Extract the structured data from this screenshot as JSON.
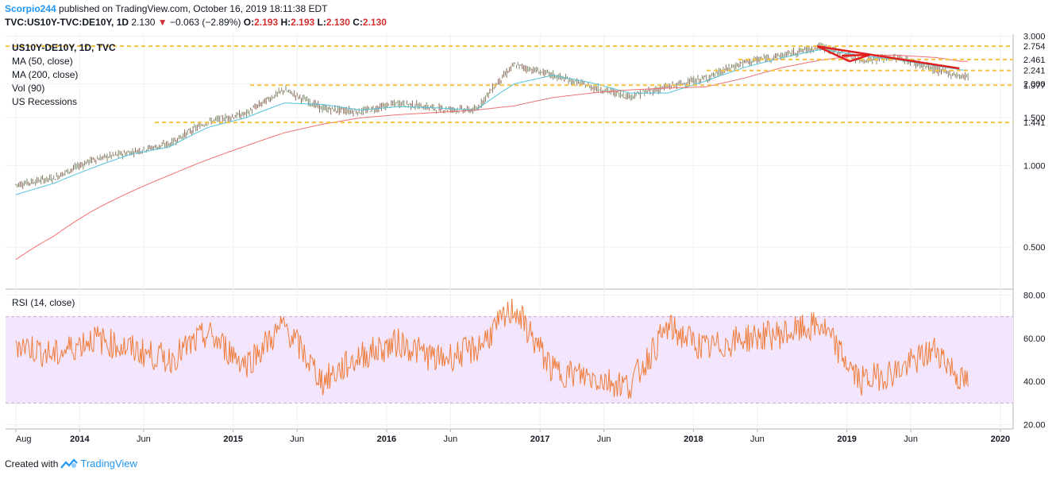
{
  "header": {
    "author": "Scorpio244",
    "published_text": "published on TradingView.com, October 16, 2019 18:11:38 EDT",
    "symbol": "TVC:US10Y-TVC:DE10Y, 1D",
    "price": "2.130",
    "change_arrow": "▼",
    "change": "−0.063 (−2.89%)",
    "o_label": "O:",
    "o": "2.193",
    "h_label": "H:",
    "h": "2.193",
    "l_label": "L:",
    "l": "2.130",
    "c_label": "C:",
    "c": "2.130"
  },
  "legend": {
    "title": "US10Y-DE10Y, 1D, TVC",
    "items": [
      "MA (50, close)",
      "MA (200, close)",
      "Vol (90)",
      "US Recessions"
    ]
  },
  "rsi_label": "RSI (14, close)",
  "footer": {
    "created_with": "Created with",
    "brand": "TradingView"
  },
  "colors": {
    "candle_up": "#7d8b6a",
    "candle_down": "#8c6b5a",
    "ma50": "#4fc3d9",
    "ma200": "#f07070",
    "level": "#f5c242",
    "trendline": "#e02020",
    "rsi": "#f07d3a",
    "rsi_band": "#f3e5fb",
    "price_badge": "#f5c242"
  },
  "chart_data": [
    {
      "type": "line",
      "title": "US10Y-DE10Y, 1D, TVC",
      "y_scale": "log",
      "ylim": [
        0.35,
        3.05
      ],
      "y_ticks": [
        "3.000",
        "2.000",
        "1.500",
        "1.000",
        "0.500"
      ],
      "x_ticks": [
        "Aug",
        "2014",
        "Jun",
        "2015",
        "Jun",
        "2016",
        "Jun",
        "2017",
        "Jun",
        "2018",
        "Jun",
        "2019",
        "Jun",
        "2020"
      ],
      "x": [
        "2013-08",
        "2013-11",
        "2014-02",
        "2014-05",
        "2014-08",
        "2014-11",
        "2015-02",
        "2015-05",
        "2015-08",
        "2015-11",
        "2016-02",
        "2016-05",
        "2016-08",
        "2016-11",
        "2017-02",
        "2017-05",
        "2017-08",
        "2017-11",
        "2018-02",
        "2018-05",
        "2018-08",
        "2018-11",
        "2019-02",
        "2019-05",
        "2019-08",
        "2019-10"
      ],
      "series": [
        {
          "name": "US10Y-DE10Y",
          "values": [
            0.85,
            0.9,
            1.05,
            1.12,
            1.2,
            1.45,
            1.55,
            1.9,
            1.62,
            1.58,
            1.7,
            1.62,
            1.6,
            2.35,
            2.15,
            1.95,
            1.8,
            1.95,
            2.1,
            2.4,
            2.55,
            2.75,
            2.45,
            2.5,
            2.25,
            2.13
          ]
        },
        {
          "name": "MA (50, close)",
          "values": [
            0.78,
            0.86,
            0.98,
            1.1,
            1.17,
            1.38,
            1.5,
            1.7,
            1.68,
            1.6,
            1.65,
            1.63,
            1.6,
            2.0,
            2.15,
            2.02,
            1.85,
            1.85,
            2.05,
            2.3,
            2.5,
            2.68,
            2.55,
            2.45,
            2.33,
            2.25
          ]
        },
        {
          "name": "MA (200, close)",
          "values": [
            0.45,
            0.55,
            0.68,
            0.8,
            0.92,
            1.05,
            1.18,
            1.32,
            1.42,
            1.5,
            1.54,
            1.57,
            1.6,
            1.66,
            1.78,
            1.85,
            1.9,
            1.93,
            1.95,
            2.1,
            2.3,
            2.45,
            2.55,
            2.55,
            2.5,
            2.42
          ]
        }
      ],
      "levels": [
        {
          "value": 2.754,
          "label": "2.754"
        },
        {
          "value": 2.461,
          "label": "2.461"
        },
        {
          "value": 2.241,
          "label": "2.241"
        },
        {
          "value": 1.977,
          "label": "1.977"
        },
        {
          "value": 1.441,
          "label": "1.441"
        }
      ]
    },
    {
      "type": "line",
      "title": "RSI (14, close)",
      "ylim": [
        18,
        82
      ],
      "y_ticks": [
        "80.00",
        "60.00",
        "40.00",
        "20.00"
      ],
      "band": [
        30,
        70
      ],
      "x": [
        "2013-08",
        "2013-11",
        "2014-02",
        "2014-05",
        "2014-08",
        "2014-11",
        "2015-02",
        "2015-05",
        "2015-08",
        "2015-11",
        "2016-02",
        "2016-05",
        "2016-08",
        "2016-11",
        "2017-02",
        "2017-05",
        "2017-08",
        "2017-11",
        "2018-02",
        "2018-05",
        "2018-08",
        "2018-11",
        "2019-02",
        "2019-05",
        "2019-08",
        "2019-10"
      ],
      "series": [
        {
          "name": "RSI (14, close)",
          "values": [
            58,
            52,
            60,
            55,
            50,
            62,
            48,
            66,
            40,
            52,
            58,
            50,
            55,
            74,
            45,
            42,
            38,
            65,
            55,
            60,
            62,
            66,
            40,
            45,
            55,
            40
          ]
        }
      ]
    }
  ]
}
